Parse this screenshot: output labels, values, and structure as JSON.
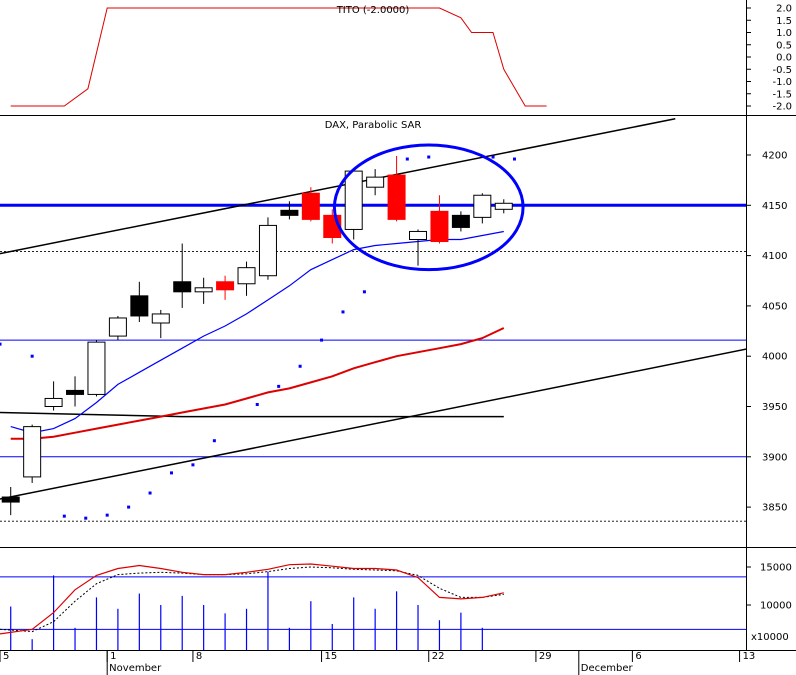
{
  "chart_data": {
    "type": "candlestick",
    "colors": {
      "up_fill": "#ffffff",
      "down_black": "#000000",
      "down_red": "#ff0000",
      "sar": "#0000ff",
      "ma_fast": "#0000ff",
      "ma_slow": "#dd0000",
      "h_line": "#0000ff",
      "trend": "#000000",
      "indicator": "#dd0000",
      "volume": "#0000ff",
      "circle": "#0000ff"
    },
    "tito": {
      "title": "TITO (-2.0000)",
      "yticks": [
        "2.0",
        "1.5",
        "1.0",
        "0.5",
        "0.0",
        "-0.5",
        "-1.0",
        "-1.5",
        "-2.0"
      ],
      "ylim": [
        -2,
        2
      ],
      "x": [
        0,
        2.5,
        3.6,
        4.5,
        19,
        20,
        21,
        21.5,
        22,
        22.5,
        23,
        24,
        25
      ],
      "y": [
        -2,
        -2,
        -1.3,
        2,
        2,
        2,
        1.6,
        1,
        1,
        1,
        -0.5,
        -2,
        -2
      ]
    },
    "price": {
      "title": "DAX, Parabolic SAR",
      "yticks": [
        "4200",
        "4150",
        "4100",
        "4050",
        "4000",
        "3950",
        "3900",
        "3850"
      ],
      "ylim": [
        3826,
        4238
      ],
      "candles": [
        {
          "x": 0,
          "o": 3855,
          "h": 3870,
          "l": 3842,
          "c": 3860,
          "col": "black"
        },
        {
          "x": 1,
          "o": 3880,
          "h": 3932,
          "l": 3874,
          "c": 3930,
          "col": "up"
        },
        {
          "x": 2,
          "o": 3950,
          "h": 3975,
          "l": 3946,
          "c": 3958,
          "col": "up"
        },
        {
          "x": 3,
          "o": 3966,
          "h": 3980,
          "l": 3950,
          "c": 3962,
          "col": "black"
        },
        {
          "x": 4,
          "o": 3962,
          "h": 4016,
          "l": 3960,
          "c": 4014,
          "col": "up"
        },
        {
          "x": 5,
          "o": 4020,
          "h": 4040,
          "l": 4016,
          "c": 4038,
          "col": "up"
        },
        {
          "x": 6,
          "o": 4060,
          "h": 4074,
          "l": 4034,
          "c": 4040,
          "col": "black"
        },
        {
          "x": 7,
          "o": 4033,
          "h": 4046,
          "l": 4018,
          "c": 4042,
          "col": "up"
        },
        {
          "x": 8,
          "o": 4074,
          "h": 4112,
          "l": 4048,
          "c": 4064,
          "col": "black"
        },
        {
          "x": 9,
          "o": 4064,
          "h": 4078,
          "l": 4052,
          "c": 4068,
          "col": "up"
        },
        {
          "x": 10,
          "o": 4074,
          "h": 4080,
          "l": 4056,
          "c": 4066,
          "col": "red"
        },
        {
          "x": 11,
          "o": 4072,
          "h": 4094,
          "l": 4060,
          "c": 4088,
          "col": "up"
        },
        {
          "x": 12,
          "o": 4080,
          "h": 4138,
          "l": 4076,
          "c": 4130,
          "col": "up"
        },
        {
          "x": 13,
          "o": 4145,
          "h": 4154,
          "l": 4136,
          "c": 4140,
          "col": "black"
        },
        {
          "x": 14,
          "o": 4162,
          "h": 4168,
          "l": 4134,
          "c": 4136,
          "col": "red"
        },
        {
          "x": 15,
          "o": 4140,
          "h": 4146,
          "l": 4112,
          "c": 4118,
          "col": "red"
        },
        {
          "x": 16,
          "o": 4126,
          "h": 4186,
          "l": 4116,
          "c": 4184,
          "col": "up"
        },
        {
          "x": 17,
          "o": 4168,
          "h": 4186,
          "l": 4160,
          "c": 4178,
          "col": "up"
        },
        {
          "x": 18,
          "o": 4180,
          "h": 4199,
          "l": 4134,
          "c": 4136,
          "col": "red"
        },
        {
          "x": 19,
          "o": 4116,
          "h": 4126,
          "l": 4090,
          "c": 4124,
          "col": "up"
        },
        {
          "x": 20,
          "o": 4144,
          "h": 4160,
          "l": 4112,
          "c": 4114,
          "col": "red"
        },
        {
          "x": 21,
          "o": 4140,
          "h": 4144,
          "l": 4124,
          "c": 4128,
          "col": "black"
        },
        {
          "x": 22,
          "o": 4138,
          "h": 4162,
          "l": 4132,
          "c": 4160,
          "col": "up"
        },
        {
          "x": 23,
          "o": 4152,
          "h": 4156,
          "l": 4142,
          "c": 4146,
          "col": "up"
        }
      ],
      "sar": [
        {
          "x": -0.5,
          "y": 4012
        },
        {
          "x": 1,
          "y": 4000
        },
        {
          "x": 2.5,
          "y": 3841
        },
        {
          "x": 3.5,
          "y": 3839
        },
        {
          "x": 4.5,
          "y": 3842
        },
        {
          "x": 5.5,
          "y": 3850
        },
        {
          "x": 6.5,
          "y": 3864
        },
        {
          "x": 7.5,
          "y": 3884
        },
        {
          "x": 8.5,
          "y": 3892
        },
        {
          "x": 9.5,
          "y": 3916
        },
        {
          "x": 11.5,
          "y": 3952
        },
        {
          "x": 12.5,
          "y": 3970
        },
        {
          "x": 13.5,
          "y": 3990
        },
        {
          "x": 14.5,
          "y": 4016
        },
        {
          "x": 15.5,
          "y": 4044
        },
        {
          "x": 16.5,
          "y": 4064
        },
        {
          "x": 18.5,
          "y": 4196
        },
        {
          "x": 19.5,
          "y": 4198
        },
        {
          "x": 22.5,
          "y": 4198
        },
        {
          "x": 23.5,
          "y": 4196
        }
      ],
      "ma_fast": [
        {
          "x": 0,
          "y": 3930
        },
        {
          "x": 1,
          "y": 3924
        },
        {
          "x": 2,
          "y": 3928
        },
        {
          "x": 3,
          "y": 3938
        },
        {
          "x": 4,
          "y": 3954
        },
        {
          "x": 5,
          "y": 3972
        },
        {
          "x": 6,
          "y": 3984
        },
        {
          "x": 7,
          "y": 3996
        },
        {
          "x": 8,
          "y": 4008
        },
        {
          "x": 9,
          "y": 4020
        },
        {
          "x": 10,
          "y": 4030
        },
        {
          "x": 11,
          "y": 4042
        },
        {
          "x": 12,
          "y": 4056
        },
        {
          "x": 13,
          "y": 4070
        },
        {
          "x": 14,
          "y": 4086
        },
        {
          "x": 15,
          "y": 4096
        },
        {
          "x": 16,
          "y": 4106
        },
        {
          "x": 17,
          "y": 4110
        },
        {
          "x": 18,
          "y": 4112
        },
        {
          "x": 19,
          "y": 4114
        },
        {
          "x": 20,
          "y": 4116
        },
        {
          "x": 21,
          "y": 4116
        },
        {
          "x": 22,
          "y": 4120
        },
        {
          "x": 23,
          "y": 4124
        }
      ],
      "ma_slow": [
        {
          "x": 0,
          "y": 3918
        },
        {
          "x": 1,
          "y": 3918
        },
        {
          "x": 2,
          "y": 3920
        },
        {
          "x": 3,
          "y": 3924
        },
        {
          "x": 4,
          "y": 3928
        },
        {
          "x": 5,
          "y": 3932
        },
        {
          "x": 6,
          "y": 3936
        },
        {
          "x": 7,
          "y": 3940
        },
        {
          "x": 8,
          "y": 3944
        },
        {
          "x": 9,
          "y": 3948
        },
        {
          "x": 10,
          "y": 3952
        },
        {
          "x": 11,
          "y": 3958
        },
        {
          "x": 12,
          "y": 3964
        },
        {
          "x": 13,
          "y": 3968
        },
        {
          "x": 14,
          "y": 3974
        },
        {
          "x": 15,
          "y": 3980
        },
        {
          "x": 16,
          "y": 3988
        },
        {
          "x": 17,
          "y": 3994
        },
        {
          "x": 18,
          "y": 4000
        },
        {
          "x": 19,
          "y": 4004
        },
        {
          "x": 20,
          "y": 4008
        },
        {
          "x": 21,
          "y": 4012
        },
        {
          "x": 22,
          "y": 4018
        },
        {
          "x": 23,
          "y": 4028
        }
      ],
      "black_line": [
        {
          "x": -0.5,
          "y": 3944
        },
        {
          "x": 8,
          "y": 3940
        },
        {
          "x": 23,
          "y": 3940
        }
      ],
      "trend_lines": [
        {
          "x1": -0.5,
          "y1": 4102,
          "x2": 31,
          "y2": 4236
        },
        {
          "x1": -0.5,
          "y1": 3858,
          "x2": 35,
          "y2": 4010
        }
      ],
      "h_lines": [
        {
          "y": 4150,
          "thick": true
        },
        {
          "y": 4016,
          "thick": false
        },
        {
          "y": 3900,
          "thick": false
        }
      ],
      "dotted_lines": [
        4104,
        3836
      ],
      "ellipse": {
        "cx": 19.5,
        "cy": 4148,
        "rx": 4.4,
        "ry": 62
      }
    },
    "stoch": {
      "yticks": [
        "15000",
        "10000"
      ],
      "scale_label": "x10000",
      "ylim": [
        4000,
        17500
      ],
      "upper_line": 13700,
      "lower_line": 6800,
      "k_line": [
        {
          "x": -0.5,
          "y": 6200
        },
        {
          "x": 1,
          "y": 6800
        },
        {
          "x": 2,
          "y": 9000
        },
        {
          "x": 3,
          "y": 12000
        },
        {
          "x": 4,
          "y": 13900
        },
        {
          "x": 5,
          "y": 14800
        },
        {
          "x": 6,
          "y": 15200
        },
        {
          "x": 7,
          "y": 14800
        },
        {
          "x": 8,
          "y": 14300
        },
        {
          "x": 9,
          "y": 14000
        },
        {
          "x": 10,
          "y": 14000
        },
        {
          "x": 11,
          "y": 14300
        },
        {
          "x": 12,
          "y": 14700
        },
        {
          "x": 13,
          "y": 15300
        },
        {
          "x": 14,
          "y": 15400
        },
        {
          "x": 15,
          "y": 15100
        },
        {
          "x": 16,
          "y": 14800
        },
        {
          "x": 17,
          "y": 14800
        },
        {
          "x": 18,
          "y": 14600
        },
        {
          "x": 19,
          "y": 13600
        },
        {
          "x": 20,
          "y": 11000
        },
        {
          "x": 21,
          "y": 10800
        },
        {
          "x": 22,
          "y": 11000
        },
        {
          "x": 23,
          "y": 11600
        }
      ],
      "d_line": [
        {
          "x": -0.5,
          "y": 6800
        },
        {
          "x": 1,
          "y": 6500
        },
        {
          "x": 2,
          "y": 7800
        },
        {
          "x": 3,
          "y": 10500
        },
        {
          "x": 4,
          "y": 12800
        },
        {
          "x": 5,
          "y": 14000
        },
        {
          "x": 6,
          "y": 14200
        },
        {
          "x": 7,
          "y": 14300
        },
        {
          "x": 8,
          "y": 14200
        },
        {
          "x": 9,
          "y": 14000
        },
        {
          "x": 10,
          "y": 14000
        },
        {
          "x": 11,
          "y": 14100
        },
        {
          "x": 12,
          "y": 14400
        },
        {
          "x": 13,
          "y": 14800
        },
        {
          "x": 14,
          "y": 15000
        },
        {
          "x": 15,
          "y": 14900
        },
        {
          "x": 16,
          "y": 14700
        },
        {
          "x": 17,
          "y": 14600
        },
        {
          "x": 18,
          "y": 14500
        },
        {
          "x": 19,
          "y": 13900
        },
        {
          "x": 20,
          "y": 12200
        },
        {
          "x": 21,
          "y": 11000
        },
        {
          "x": 22,
          "y": 11000
        },
        {
          "x": 23,
          "y": 11400
        }
      ],
      "volume": [
        {
          "x": 0,
          "v": 9800
        },
        {
          "x": 1,
          "v": 5500
        },
        {
          "x": 2,
          "v": 13900
        },
        {
          "x": 3,
          "v": 7000
        },
        {
          "x": 4,
          "v": 11000
        },
        {
          "x": 5,
          "v": 9500
        },
        {
          "x": 6,
          "v": 11500
        },
        {
          "x": 7,
          "v": 10000
        },
        {
          "x": 8,
          "v": 11200
        },
        {
          "x": 9,
          "v": 10000
        },
        {
          "x": 10,
          "v": 8900
        },
        {
          "x": 11,
          "v": 9500
        },
        {
          "x": 12,
          "v": 14400
        },
        {
          "x": 13,
          "v": 7000
        },
        {
          "x": 14,
          "v": 10500
        },
        {
          "x": 15,
          "v": 7500
        },
        {
          "x": 16,
          "v": 11000
        },
        {
          "x": 17,
          "v": 9500
        },
        {
          "x": 18,
          "v": 11800
        },
        {
          "x": 19,
          "v": 10000
        },
        {
          "x": 20,
          "v": 8000
        },
        {
          "x": 21,
          "v": 9000
        },
        {
          "x": 22,
          "v": 7000
        }
      ]
    },
    "xaxis": {
      "labels": [
        {
          "x": -0.5,
          "text": "5"
        },
        {
          "x": 4.5,
          "text": "1"
        },
        {
          "x": 8.5,
          "text": "8"
        },
        {
          "x": 14.5,
          "text": "15"
        },
        {
          "x": 19.5,
          "text": "22"
        },
        {
          "x": 24.5,
          "text": "29"
        },
        {
          "x": 29,
          "text": "6"
        },
        {
          "x": 34,
          "text": "13"
        }
      ],
      "month_labels": [
        {
          "x": 4.5,
          "text": "November"
        },
        {
          "x": 26.5,
          "text": "December"
        }
      ],
      "xlim": [
        -0.5,
        34.3
      ]
    }
  }
}
